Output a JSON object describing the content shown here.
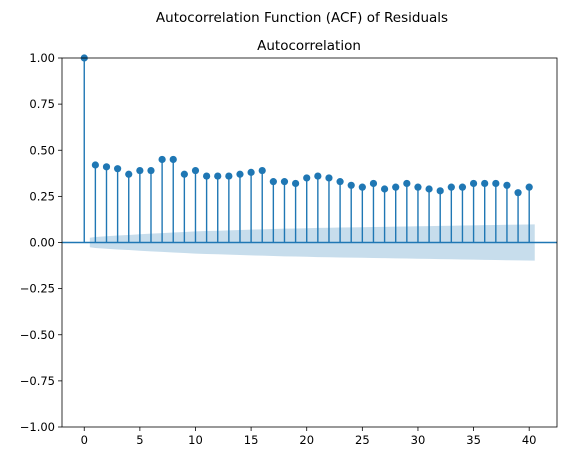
{
  "chart_data": {
    "type": "stem",
    "suptitle": "Autocorrelation Function (ACF) of Residuals",
    "title": "Autocorrelation",
    "xlabel": "",
    "ylabel": "",
    "xlim": [
      -2,
      42.5
    ],
    "ylim": [
      -1.0,
      1.0
    ],
    "xticks": [
      0,
      5,
      10,
      15,
      20,
      25,
      30,
      35,
      40
    ],
    "xtick_labels": [
      "0",
      "5",
      "10",
      "15",
      "20",
      "25",
      "30",
      "35",
      "40"
    ],
    "yticks": [
      -1.0,
      -0.75,
      -0.5,
      -0.25,
      0.0,
      0.25,
      0.5,
      0.75,
      1.0
    ],
    "ytick_labels": [
      "−1.00",
      "−0.75",
      "−0.50",
      "−0.25",
      "0.00",
      "0.25",
      "0.50",
      "0.75",
      "1.00"
    ],
    "grid": false,
    "colors": {
      "stem": "#1f77b4",
      "marker": "#1f77b4",
      "zero_line": "#1f77b4",
      "confidence_band": "#1f77b4"
    },
    "lags": [
      0,
      1,
      2,
      3,
      4,
      5,
      6,
      7,
      8,
      9,
      10,
      11,
      12,
      13,
      14,
      15,
      16,
      17,
      18,
      19,
      20,
      21,
      22,
      23,
      24,
      25,
      26,
      27,
      28,
      29,
      30,
      31,
      32,
      33,
      34,
      35,
      36,
      37,
      38,
      39,
      40
    ],
    "values": [
      1.0,
      0.42,
      0.41,
      0.4,
      0.37,
      0.39,
      0.39,
      0.45,
      0.45,
      0.37,
      0.39,
      0.36,
      0.36,
      0.36,
      0.37,
      0.38,
      0.39,
      0.33,
      0.33,
      0.32,
      0.35,
      0.36,
      0.35,
      0.33,
      0.31,
      0.3,
      0.32,
      0.29,
      0.3,
      0.32,
      0.3,
      0.29,
      0.28,
      0.3,
      0.3,
      0.32,
      0.32,
      0.32,
      0.31,
      0.27,
      0.3
    ],
    "confidence_band": {
      "lags": [
        0.5,
        1,
        2,
        3,
        4,
        5,
        6,
        7,
        8,
        9,
        10,
        11,
        12,
        13,
        14,
        15,
        16,
        17,
        18,
        19,
        20,
        21,
        22,
        23,
        24,
        25,
        26,
        27,
        28,
        29,
        30,
        31,
        32,
        33,
        34,
        35,
        36,
        37,
        38,
        39,
        40.5
      ],
      "upper": [
        0.026,
        0.03,
        0.034,
        0.038,
        0.041,
        0.045,
        0.048,
        0.051,
        0.054,
        0.057,
        0.06,
        0.062,
        0.064,
        0.066,
        0.068,
        0.07,
        0.071,
        0.073,
        0.075,
        0.076,
        0.077,
        0.079,
        0.08,
        0.081,
        0.082,
        0.083,
        0.084,
        0.085,
        0.086,
        0.087,
        0.088,
        0.089,
        0.09,
        0.091,
        0.092,
        0.093,
        0.094,
        0.095,
        0.096,
        0.097,
        0.098
      ]
    }
  }
}
